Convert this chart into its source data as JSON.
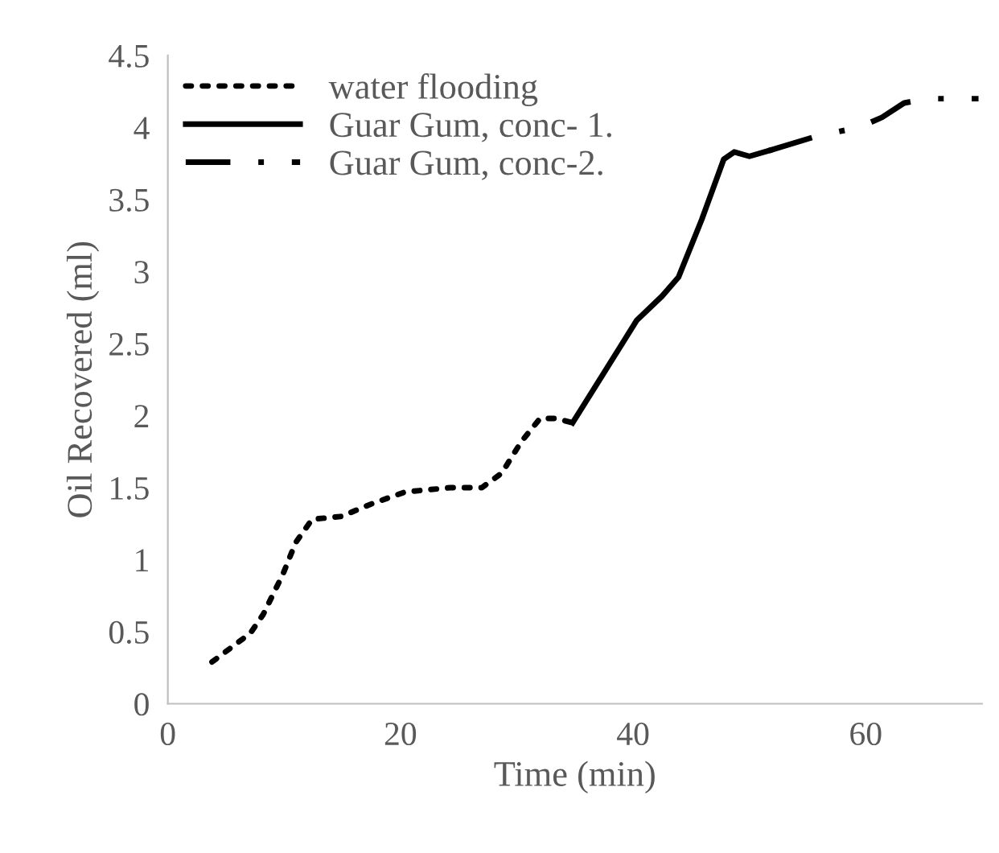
{
  "chart_data": {
    "type": "line",
    "xlabel": "Time (min)",
    "ylabel": "Oil Recovered (ml)",
    "xlim": [
      0,
      70
    ],
    "xticks": [
      0,
      20,
      40,
      60
    ],
    "ylim": [
      0,
      4.5
    ],
    "yticks": [
      0,
      0.5,
      1,
      1.5,
      2,
      2.5,
      3,
      3.5,
      4,
      4.5
    ],
    "grid": false,
    "legend": "top left",
    "marker": "none",
    "series": [
      {
        "name": "water flooding",
        "color": "#000000",
        "line_style": "dotted",
        "x": [
          3.8,
          7.1,
          8.2,
          9.9,
          11,
          12.4,
          14.9,
          17.6,
          20.4,
          24.3,
          27,
          28.7,
          30.4,
          32,
          33.4,
          34.8
        ],
        "values": [
          0.29,
          0.49,
          0.62,
          0.9,
          1.12,
          1.28,
          1.3,
          1.39,
          1.47,
          1.5,
          1.5,
          1.6,
          1.82,
          1.98,
          1.98,
          1.95
        ]
      },
      {
        "name": "Guar Gum, conc- 1.",
        "color": "#000000",
        "line_style": "solid",
        "x": [
          34.8,
          37.6,
          40.3,
          42.5,
          43.9,
          45.9,
          47.8,
          48.7,
          50,
          51.7
        ],
        "values": [
          1.95,
          2.31,
          2.66,
          2.83,
          2.96,
          3.36,
          3.78,
          3.83,
          3.8,
          3.84
        ]
      },
      {
        "name": "Guar Gum, conc-2.",
        "color": "#000000",
        "line_style": "dashdot",
        "x": [
          51.7,
          55.8,
          59.4,
          61.4,
          63.3,
          65.3,
          69.7
        ],
        "values": [
          3.84,
          3.94,
          4.0,
          4.07,
          4.17,
          4.2,
          4.2
        ]
      }
    ]
  }
}
